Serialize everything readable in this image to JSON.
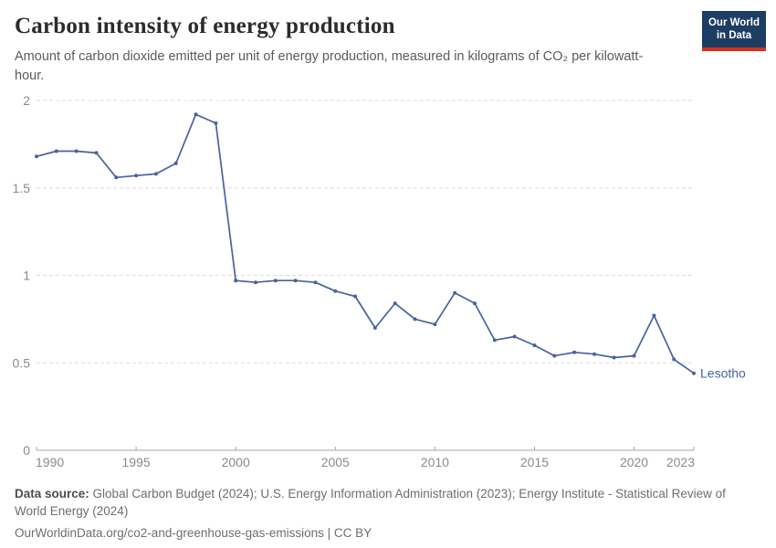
{
  "header": {
    "title": "Carbon intensity of energy production",
    "subtitle": "Amount of carbon dioxide emitted per unit of energy production, measured in kilograms of CO₂ per kilowatt-hour.",
    "logo": {
      "line1": "Our World",
      "line2": "in Data"
    }
  },
  "chart_data": {
    "type": "line",
    "title": "Carbon intensity of energy production",
    "entity": "Lesotho",
    "unit": "kilograms of CO₂ per kilowatt-hour",
    "x": [
      1990,
      1991,
      1992,
      1993,
      1994,
      1995,
      1996,
      1997,
      1998,
      1999,
      2000,
      2001,
      2002,
      2003,
      2004,
      2005,
      2006,
      2007,
      2008,
      2009,
      2010,
      2011,
      2012,
      2013,
      2014,
      2015,
      2016,
      2017,
      2018,
      2019,
      2020,
      2021,
      2022,
      2023
    ],
    "series": [
      {
        "name": "Lesotho",
        "values": [
          1.68,
          1.71,
          1.71,
          1.7,
          1.56,
          1.57,
          1.58,
          1.64,
          1.92,
          1.87,
          0.97,
          0.96,
          0.97,
          0.97,
          0.96,
          0.91,
          0.88,
          0.7,
          0.84,
          0.75,
          0.72,
          0.9,
          0.84,
          0.63,
          0.65,
          0.6,
          0.54,
          0.56,
          0.55,
          0.53,
          0.54,
          0.77,
          0.52,
          0.44
        ]
      }
    ],
    "xlabel": "",
    "ylabel": "",
    "ylim": [
      0,
      2
    ],
    "yticks": [
      0,
      0.5,
      1,
      1.5,
      2
    ],
    "xticks": [
      1990,
      1995,
      2000,
      2005,
      2010,
      2015,
      2020,
      2023
    ],
    "grid": "horizontal-dashed",
    "legend_position": "end-of-line-label",
    "end_label": "Lesotho"
  },
  "footer": {
    "source_label": "Data source:",
    "source_text": "Global Carbon Budget (2024); U.S. Energy Information Administration (2023); Energy Institute - Statistical Review of World Energy (2024)",
    "license_line": "OurWorldinData.org/co2-and-greenhouse-gas-emissions | CC BY"
  },
  "colors": {
    "line": "#47639e",
    "logo_bg": "#1d3d63",
    "logo_accent": "#d7301f",
    "grid": "#dddddd",
    "axis": "#a8a8a8",
    "tick_label": "#8b8b8b",
    "title": "#2b2b2b",
    "subtitle": "#5b5b5b"
  }
}
